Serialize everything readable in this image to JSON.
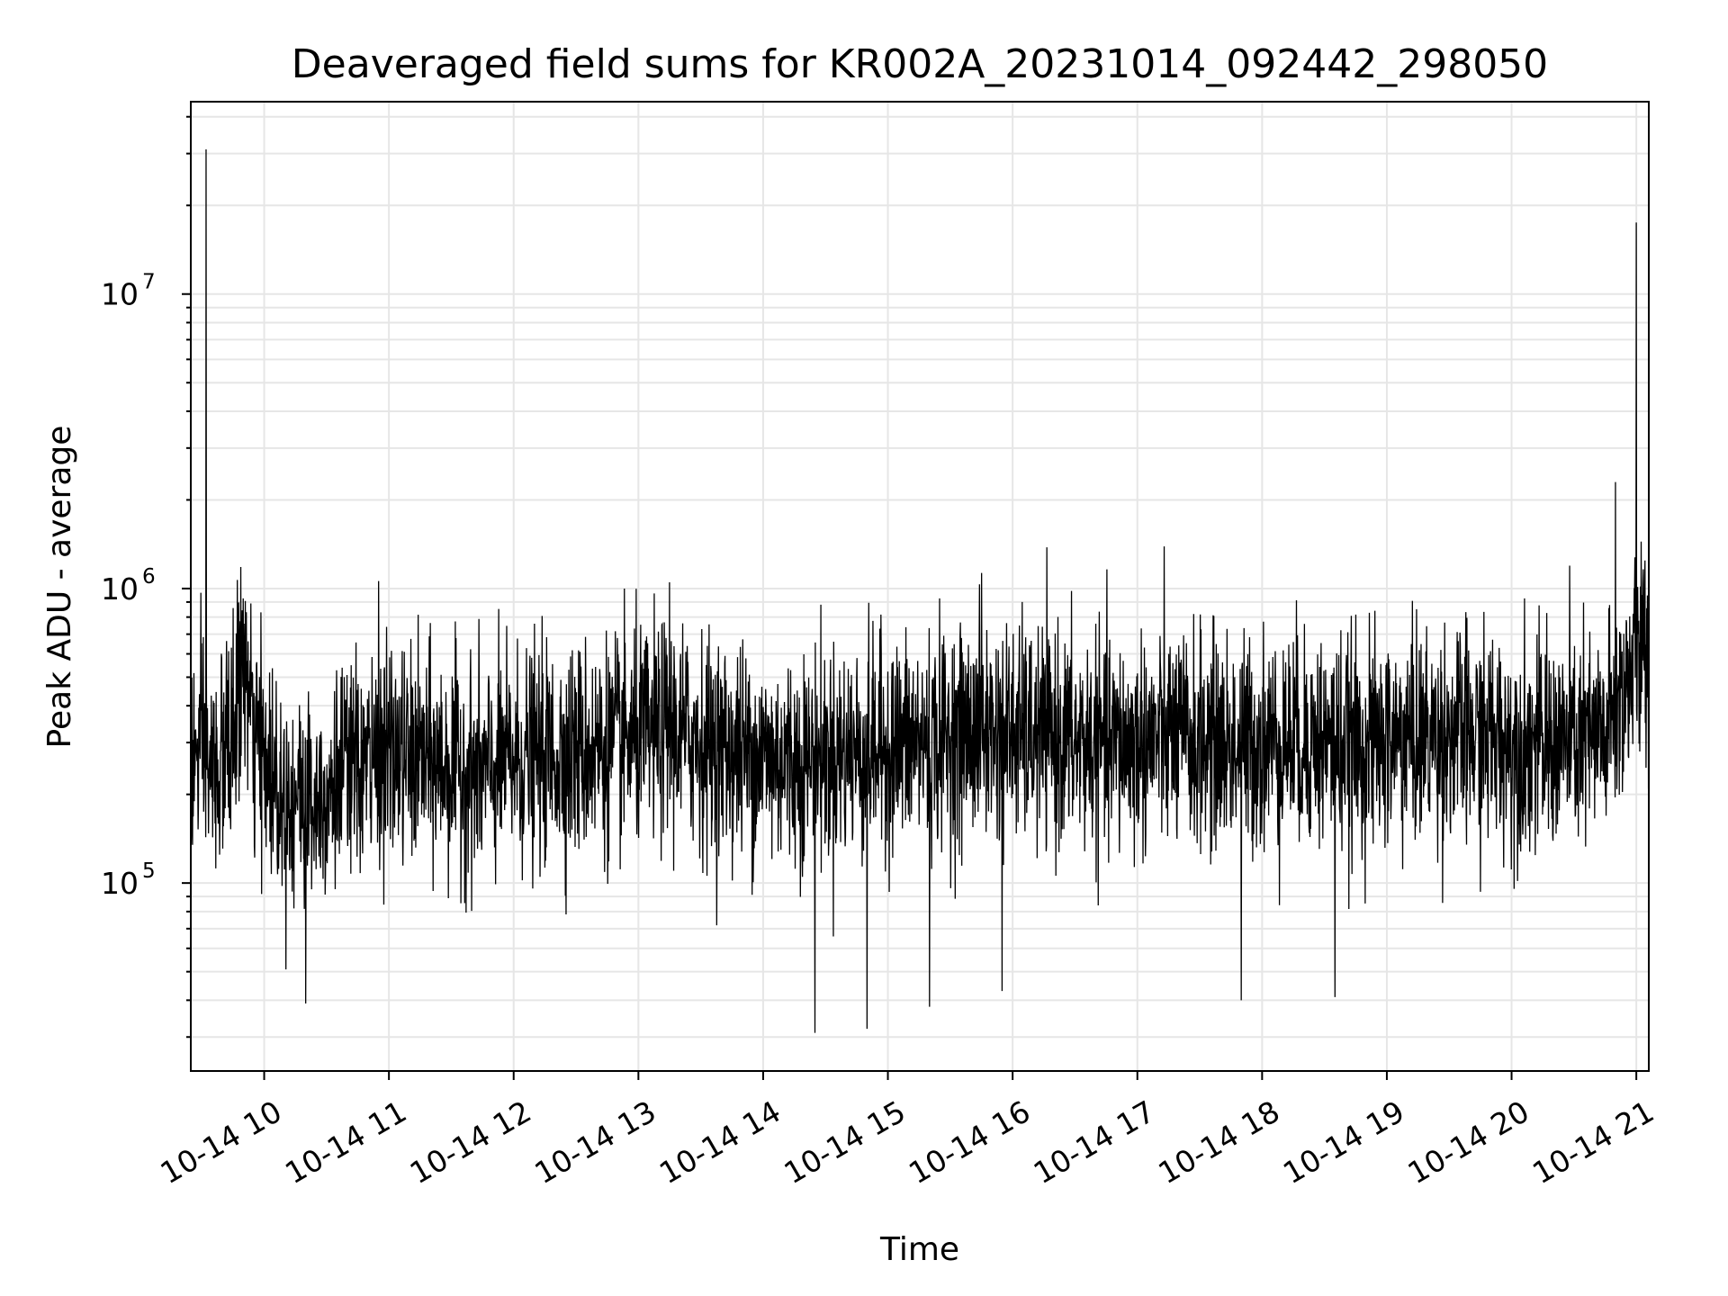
{
  "chart_data": {
    "type": "line",
    "title": "Deaveraged field sums for KR002A_20231014_092442_298050",
    "xlabel": "Time",
    "ylabel": "Peak ADU - average",
    "yscale": "log",
    "grid": true,
    "line_color": "#000000",
    "grid_color": "#e6e6e6",
    "xlim": [
      "2023-10-14T09:24:42",
      "2023-10-14T21:06:00"
    ],
    "ylim": [
      23000,
      45000000
    ],
    "x_ticks": [
      {
        "t": "2023-10-14T10:00:00",
        "label": "10-14 10"
      },
      {
        "t": "2023-10-14T11:00:00",
        "label": "10-14 11"
      },
      {
        "t": "2023-10-14T12:00:00",
        "label": "10-14 12"
      },
      {
        "t": "2023-10-14T13:00:00",
        "label": "10-14 13"
      },
      {
        "t": "2023-10-14T14:00:00",
        "label": "10-14 14"
      },
      {
        "t": "2023-10-14T15:00:00",
        "label": "10-14 15"
      },
      {
        "t": "2023-10-14T16:00:00",
        "label": "10-14 16"
      },
      {
        "t": "2023-10-14T17:00:00",
        "label": "10-14 17"
      },
      {
        "t": "2023-10-14T18:00:00",
        "label": "10-14 18"
      },
      {
        "t": "2023-10-14T19:00:00",
        "label": "10-14 19"
      },
      {
        "t": "2023-10-14T20:00:00",
        "label": "10-14 20"
      },
      {
        "t": "2023-10-14T21:00:00",
        "label": "10-14 21"
      }
    ],
    "y_ticks": [
      {
        "value": 100000,
        "base": "10",
        "exp": "5"
      },
      {
        "value": 1000000,
        "base": "10",
        "exp": "6"
      },
      {
        "value": 10000000,
        "base": "10",
        "exp": "7"
      }
    ],
    "series": [
      {
        "x": [
          "2023-10-14T09:24:42",
          "2023-10-14T09:30:00",
          "2023-10-14T09:35:00",
          "2023-10-14T09:40:00",
          "2023-10-14T09:45:00",
          "2023-10-14T09:50:00",
          "2023-10-14T09:55:00",
          "2023-10-14T10:00:00",
          "2023-10-14T10:10:00",
          "2023-10-14T10:20:00",
          "2023-10-14T10:30:00",
          "2023-10-14T10:40:00",
          "2023-10-14T10:50:00",
          "2023-10-14T11:00:00",
          "2023-10-14T11:15:00",
          "2023-10-14T11:30:00",
          "2023-10-14T11:45:00",
          "2023-10-14T12:00:00",
          "2023-10-14T12:15:00",
          "2023-10-14T12:30:00",
          "2023-10-14T12:45:00",
          "2023-10-14T13:00:00",
          "2023-10-14T13:15:00",
          "2023-10-14T13:30:00",
          "2023-10-14T13:45:00",
          "2023-10-14T14:00:00",
          "2023-10-14T14:15:00",
          "2023-10-14T14:30:00",
          "2023-10-14T14:45:00",
          "2023-10-14T15:00:00",
          "2023-10-14T15:15:00",
          "2023-10-14T15:30:00",
          "2023-10-14T15:45:00",
          "2023-10-14T16:00:00",
          "2023-10-14T16:15:00",
          "2023-10-14T16:30:00",
          "2023-10-14T16:45:00",
          "2023-10-14T17:00:00",
          "2023-10-14T17:15:00",
          "2023-10-14T17:30:00",
          "2023-10-14T17:45:00",
          "2023-10-14T18:00:00",
          "2023-10-14T18:15:00",
          "2023-10-14T18:30:00",
          "2023-10-14T18:45:00",
          "2023-10-14T19:00:00",
          "2023-10-14T19:15:00",
          "2023-10-14T19:30:00",
          "2023-10-14T19:45:00",
          "2023-10-14T20:00:00",
          "2023-10-14T20:15:00",
          "2023-10-14T20:30:00",
          "2023-10-14T20:45:00",
          "2023-10-14T21:00:00",
          "2023-10-14T21:06:00"
        ],
        "y": [
          250000,
          280000,
          230000,
          260000,
          320000,
          600000,
          300000,
          260000,
          200000,
          190000,
          210000,
          240000,
          250000,
          270000,
          260000,
          250000,
          230000,
          260000,
          270000,
          280000,
          290000,
          310000,
          330000,
          300000,
          280000,
          270000,
          260000,
          270000,
          280000,
          290000,
          300000,
          310000,
          330000,
          320000,
          310000,
          300000,
          290000,
          300000,
          310000,
          300000,
          290000,
          300000,
          310000,
          300000,
          290000,
          300000,
          310000,
          320000,
          310000,
          300000,
          290000,
          300000,
          310000,
          580000,
          600000
        ],
        "spikes": [
          {
            "t": "2023-10-14T09:32:00",
            "y": 31000000
          },
          {
            "t": "2023-10-14T21:00:00",
            "y": 17500000
          },
          {
            "t": "2023-10-14T20:50:00",
            "y": 2300000
          },
          {
            "t": "2023-10-14T15:45:00",
            "y": 1130000
          },
          {
            "t": "2023-10-14T09:47:00",
            "y": 1070000
          },
          {
            "t": "2023-10-14T13:15:00",
            "y": 1050000
          },
          {
            "t": "2023-10-14T10:55:00",
            "y": 1060000
          },
          {
            "t": "2023-10-14T14:25:00",
            "y": 31000
          },
          {
            "t": "2023-10-14T14:50:00",
            "y": 32000
          },
          {
            "t": "2023-10-14T10:20:00",
            "y": 39000
          },
          {
            "t": "2023-10-14T17:50:00",
            "y": 40000
          },
          {
            "t": "2023-10-14T18:35:00",
            "y": 41000
          },
          {
            "t": "2023-10-14T15:55:00",
            "y": 43000
          },
          {
            "t": "2023-10-14T15:20:00",
            "y": 38000
          }
        ]
      }
    ]
  }
}
